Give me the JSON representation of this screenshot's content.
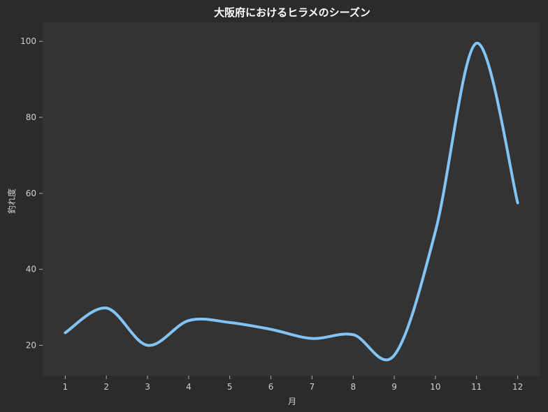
{
  "chart_data": {
    "type": "line",
    "title": "大阪府におけるヒラメのシーズン",
    "xlabel": "月",
    "ylabel": "釣れ度",
    "x": [
      1,
      2,
      3,
      4,
      5,
      6,
      7,
      8,
      9,
      10,
      11,
      12
    ],
    "xticks": [
      "1",
      "2",
      "3",
      "4",
      "5",
      "6",
      "7",
      "8",
      "9",
      "10",
      "11",
      "12"
    ],
    "yticks": [
      "20",
      "40",
      "60",
      "80",
      "100"
    ],
    "xlim": [
      0.45,
      12.55
    ],
    "ylim": [
      12,
      105
    ],
    "series": [
      {
        "values": [
          23.3,
          29.8,
          20.0,
          26.5,
          26.0,
          24.2,
          21.8,
          22.8,
          17.4,
          50.0,
          99.5,
          57.5
        ],
        "color": "#82c4f5"
      }
    ],
    "grid": false,
    "legend": "none"
  },
  "colors": {
    "figure_bg": "#2b2b2b",
    "plot_bg": "#333333",
    "text": "#d0d0d0",
    "title": "#ffffff",
    "tick": "#aaaaaa"
  }
}
